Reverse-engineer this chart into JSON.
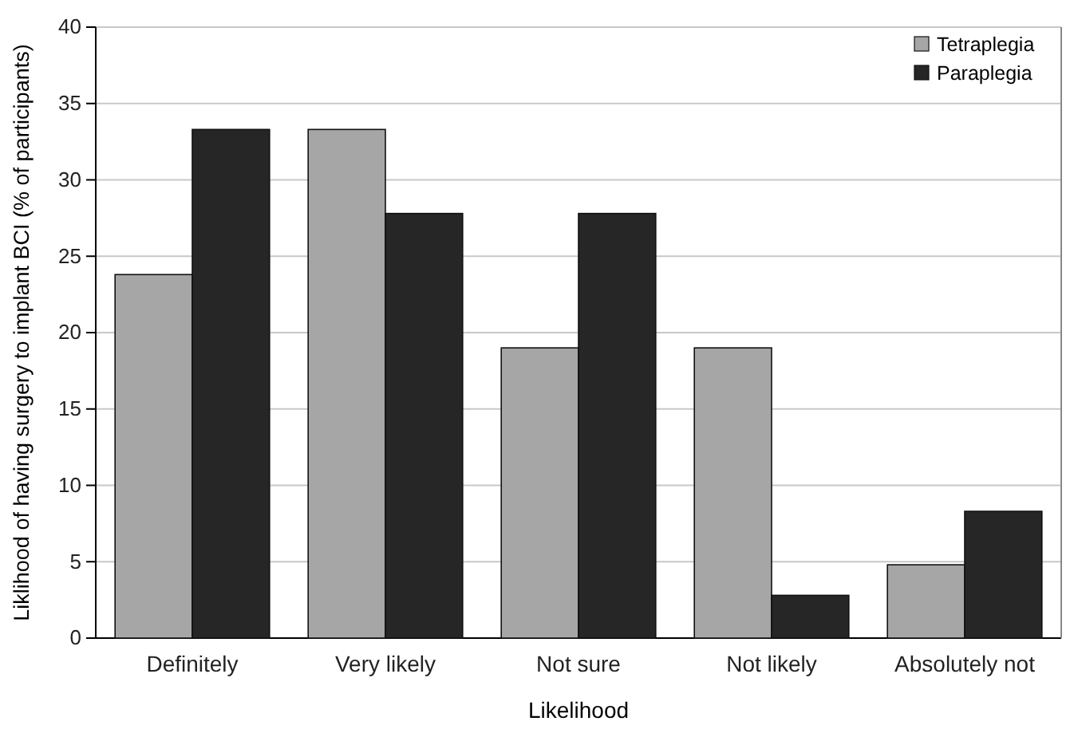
{
  "chart_data": {
    "type": "bar",
    "xlabel": "Likelihood",
    "ylabel": "Liklihood of having surgery to implant BCI (% of participants)",
    "categories": [
      "Definitely",
      "Very likely",
      "Not sure",
      "Not likely",
      "Absolutely not"
    ],
    "series": [
      {
        "name": "Tetraplegia",
        "color": "#a6a6a6",
        "values": [
          23.8,
          33.3,
          19.0,
          19.0,
          4.8
        ]
      },
      {
        "name": "Paraplegia",
        "color": "#262626",
        "values": [
          33.3,
          27.8,
          27.8,
          2.8,
          8.3
        ]
      }
    ],
    "ylim": [
      0,
      40
    ],
    "yticks": [
      0,
      5,
      10,
      15,
      20,
      25,
      30,
      35,
      40
    ],
    "grid": "y",
    "legend": "top right"
  }
}
